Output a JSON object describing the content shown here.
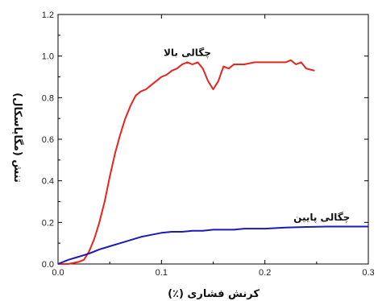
{
  "chart_data": {
    "type": "line",
    "title": "",
    "xlabel": "کرنش فشاری (٪)",
    "ylabel": "تنش (مگاپاسکال)",
    "xlim": [
      0.0,
      0.3
    ],
    "ylim": [
      0.0,
      1.2
    ],
    "x_ticks": [
      0.0,
      0.1,
      0.2,
      0.3
    ],
    "x_tick_labels": [
      "0.0",
      "0.1",
      "0.2",
      "0.3"
    ],
    "y_ticks": [
      0.0,
      0.2,
      0.4,
      0.6,
      0.8,
      1.0,
      1.2
    ],
    "y_tick_labels": [
      "0.0",
      "0.2",
      "0.4",
      "0.6",
      "0.8",
      "1.0",
      "1.2"
    ],
    "grid": false,
    "series": [
      {
        "name": "چگالی بالا",
        "color": "#e8241c",
        "points": [
          [
            0.0,
            0.0
          ],
          [
            0.01,
            0.0
          ],
          [
            0.02,
            0.01
          ],
          [
            0.025,
            0.02
          ],
          [
            0.03,
            0.06
          ],
          [
            0.035,
            0.12
          ],
          [
            0.04,
            0.2
          ],
          [
            0.045,
            0.3
          ],
          [
            0.05,
            0.42
          ],
          [
            0.055,
            0.53
          ],
          [
            0.06,
            0.62
          ],
          [
            0.065,
            0.7
          ],
          [
            0.07,
            0.76
          ],
          [
            0.075,
            0.81
          ],
          [
            0.08,
            0.83
          ],
          [
            0.085,
            0.84
          ],
          [
            0.09,
            0.86
          ],
          [
            0.095,
            0.88
          ],
          [
            0.1,
            0.9
          ],
          [
            0.105,
            0.91
          ],
          [
            0.11,
            0.93
          ],
          [
            0.115,
            0.94
          ],
          [
            0.12,
            0.96
          ],
          [
            0.125,
            0.97
          ],
          [
            0.13,
            0.96
          ],
          [
            0.135,
            0.97
          ],
          [
            0.14,
            0.94
          ],
          [
            0.145,
            0.88
          ],
          [
            0.15,
            0.84
          ],
          [
            0.155,
            0.88
          ],
          [
            0.16,
            0.95
          ],
          [
            0.165,
            0.94
          ],
          [
            0.17,
            0.96
          ],
          [
            0.18,
            0.96
          ],
          [
            0.19,
            0.97
          ],
          [
            0.2,
            0.97
          ],
          [
            0.21,
            0.97
          ],
          [
            0.22,
            0.97
          ],
          [
            0.225,
            0.98
          ],
          [
            0.23,
            0.96
          ],
          [
            0.235,
            0.97
          ],
          [
            0.24,
            0.94
          ],
          [
            0.248,
            0.93
          ]
        ]
      },
      {
        "name": "چگالی پایین",
        "color": "#1a1ab8",
        "points": [
          [
            0.0,
            0.0
          ],
          [
            0.01,
            0.02
          ],
          [
            0.02,
            0.035
          ],
          [
            0.03,
            0.05
          ],
          [
            0.04,
            0.07
          ],
          [
            0.05,
            0.085
          ],
          [
            0.06,
            0.1
          ],
          [
            0.07,
            0.115
          ],
          [
            0.08,
            0.13
          ],
          [
            0.09,
            0.14
          ],
          [
            0.1,
            0.15
          ],
          [
            0.11,
            0.155
          ],
          [
            0.12,
            0.155
          ],
          [
            0.13,
            0.16
          ],
          [
            0.14,
            0.16
          ],
          [
            0.15,
            0.165
          ],
          [
            0.16,
            0.165
          ],
          [
            0.17,
            0.165
          ],
          [
            0.18,
            0.17
          ],
          [
            0.2,
            0.17
          ],
          [
            0.22,
            0.175
          ],
          [
            0.24,
            0.178
          ],
          [
            0.26,
            0.18
          ],
          [
            0.28,
            0.18
          ],
          [
            0.3,
            0.18
          ]
        ]
      }
    ],
    "annotations": [
      {
        "text": "چگالی بالا",
        "x": 0.125,
        "y": 1.0
      },
      {
        "text": "چگالی پایین",
        "x": 0.255,
        "y": 0.21
      }
    ]
  }
}
